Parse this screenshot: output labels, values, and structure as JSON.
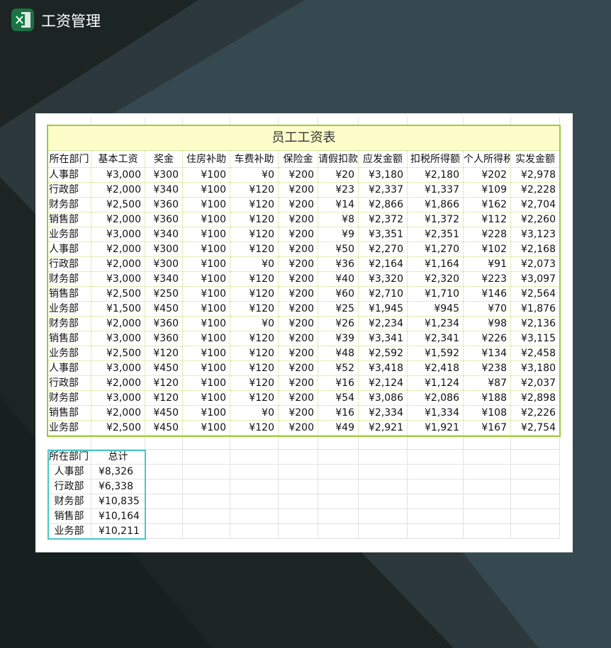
{
  "header": {
    "title": "工资管理"
  },
  "table": {
    "title": "员工工资表",
    "columns": [
      "所在部门",
      "基本工资",
      "奖金",
      "住房补助",
      "车费补助",
      "保险金",
      "请假扣款",
      "应发金额",
      "扣税所得额",
      "个人所得税",
      "实发金额"
    ],
    "rows": [
      [
        "人事部",
        "¥3,000",
        "¥300",
        "¥100",
        "¥0",
        "¥200",
        "¥20",
        "¥3,180",
        "¥2,180",
        "¥202",
        "¥2,978"
      ],
      [
        "行政部",
        "¥2,000",
        "¥340",
        "¥100",
        "¥120",
        "¥200",
        "¥23",
        "¥2,337",
        "¥1,337",
        "¥109",
        "¥2,228"
      ],
      [
        "财务部",
        "¥2,500",
        "¥360",
        "¥100",
        "¥120",
        "¥200",
        "¥14",
        "¥2,866",
        "¥1,866",
        "¥162",
        "¥2,704"
      ],
      [
        "销售部",
        "¥2,000",
        "¥360",
        "¥100",
        "¥120",
        "¥200",
        "¥8",
        "¥2,372",
        "¥1,372",
        "¥112",
        "¥2,260"
      ],
      [
        "业务部",
        "¥3,000",
        "¥340",
        "¥100",
        "¥120",
        "¥200",
        "¥9",
        "¥3,351",
        "¥2,351",
        "¥228",
        "¥3,123"
      ],
      [
        "人事部",
        "¥2,000",
        "¥300",
        "¥100",
        "¥120",
        "¥200",
        "¥50",
        "¥2,270",
        "¥1,270",
        "¥102",
        "¥2,168"
      ],
      [
        "行政部",
        "¥2,000",
        "¥300",
        "¥100",
        "¥0",
        "¥200",
        "¥36",
        "¥2,164",
        "¥1,164",
        "¥91",
        "¥2,073"
      ],
      [
        "财务部",
        "¥3,000",
        "¥340",
        "¥100",
        "¥120",
        "¥200",
        "¥40",
        "¥3,320",
        "¥2,320",
        "¥223",
        "¥3,097"
      ],
      [
        "销售部",
        "¥2,500",
        "¥250",
        "¥100",
        "¥120",
        "¥200",
        "¥60",
        "¥2,710",
        "¥1,710",
        "¥146",
        "¥2,564"
      ],
      [
        "业务部",
        "¥1,500",
        "¥450",
        "¥100",
        "¥120",
        "¥200",
        "¥25",
        "¥1,945",
        "¥945",
        "¥70",
        "¥1,876"
      ],
      [
        "财务部",
        "¥2,000",
        "¥360",
        "¥100",
        "¥0",
        "¥200",
        "¥26",
        "¥2,234",
        "¥1,234",
        "¥98",
        "¥2,136"
      ],
      [
        "销售部",
        "¥3,000",
        "¥360",
        "¥100",
        "¥120",
        "¥200",
        "¥39",
        "¥3,341",
        "¥2,341",
        "¥226",
        "¥3,115"
      ],
      [
        "业务部",
        "¥2,500",
        "¥120",
        "¥100",
        "¥120",
        "¥200",
        "¥48",
        "¥2,592",
        "¥1,592",
        "¥134",
        "¥2,458"
      ],
      [
        "人事部",
        "¥3,000",
        "¥450",
        "¥100",
        "¥120",
        "¥200",
        "¥52",
        "¥3,418",
        "¥2,418",
        "¥238",
        "¥3,180"
      ],
      [
        "行政部",
        "¥2,000",
        "¥120",
        "¥100",
        "¥120",
        "¥200",
        "¥16",
        "¥2,124",
        "¥1,124",
        "¥87",
        "¥2,037"
      ],
      [
        "财务部",
        "¥3,000",
        "¥120",
        "¥100",
        "¥120",
        "¥200",
        "¥54",
        "¥3,086",
        "¥2,086",
        "¥188",
        "¥2,898"
      ],
      [
        "销售部",
        "¥2,000",
        "¥450",
        "¥100",
        "¥0",
        "¥200",
        "¥16",
        "¥2,334",
        "¥1,334",
        "¥108",
        "¥2,226"
      ],
      [
        "业务部",
        "¥2,500",
        "¥450",
        "¥100",
        "¥120",
        "¥200",
        "¥49",
        "¥2,921",
        "¥1,921",
        "¥167",
        "¥2,754"
      ]
    ]
  },
  "summary": {
    "columns": [
      "所在部门",
      "总计"
    ],
    "rows": [
      [
        "人事部",
        "¥8,326"
      ],
      [
        "行政部",
        "¥6,338"
      ],
      [
        "财务部",
        "¥10,835"
      ],
      [
        "销售部",
        "¥10,164"
      ],
      [
        "业务部",
        "¥10,211"
      ]
    ]
  }
}
